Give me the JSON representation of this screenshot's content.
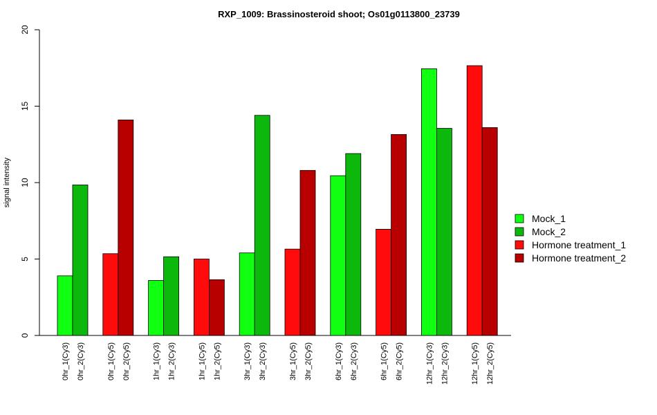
{
  "chart_data": {
    "type": "bar",
    "title": "RXP_1009: Brassinosteroid shoot; Os01g0113800_23739",
    "xlabel": "",
    "ylabel": "signal intensity",
    "ylim": [
      0,
      20
    ],
    "yticks": [
      0,
      5,
      10,
      15,
      20
    ],
    "grid": false,
    "legend_position": "right",
    "categories": [
      "0hr_1(Cy3)",
      "0hr_2(Cy3)",
      "0hr_1(Cy5)",
      "0hr_2(Cy5)",
      "1hr_1(Cy3)",
      "1hr_2(Cy3)",
      "1hr_1(Cy5)",
      "1hr_2(Cy5)",
      "3hr_1(Cy3)",
      "3hr_2(Cy3)",
      "3hr_1(Cy5)",
      "3hr_2(Cy5)",
      "6hr_1(Cy3)",
      "6hr_2(Cy3)",
      "6hr_1(Cy5)",
      "6hr_2(Cy5)",
      "12hr_1(Cy3)",
      "12hr_2(Cy3)",
      "12hr_1(Cy5)",
      "12hr_2(Cy5)"
    ],
    "values": [
      3.9,
      9.85,
      5.35,
      14.1,
      3.6,
      5.15,
      5.0,
      3.65,
      5.4,
      14.4,
      5.65,
      10.8,
      10.45,
      11.9,
      6.95,
      13.15,
      17.45,
      13.55,
      17.65,
      13.6
    ],
    "bar_series": [
      0,
      1,
      2,
      3,
      0,
      1,
      2,
      3,
      0,
      1,
      2,
      3,
      0,
      1,
      2,
      3,
      0,
      1,
      2,
      3
    ],
    "series": [
      {
        "name": "Mock_1",
        "color": "#11ff11"
      },
      {
        "name": "Mock_2",
        "color": "#0db80d"
      },
      {
        "name": "Hormone treatment_1",
        "color": "#ff0b0b"
      },
      {
        "name": "Hormone treatment_2",
        "color": "#b80000"
      }
    ]
  }
}
